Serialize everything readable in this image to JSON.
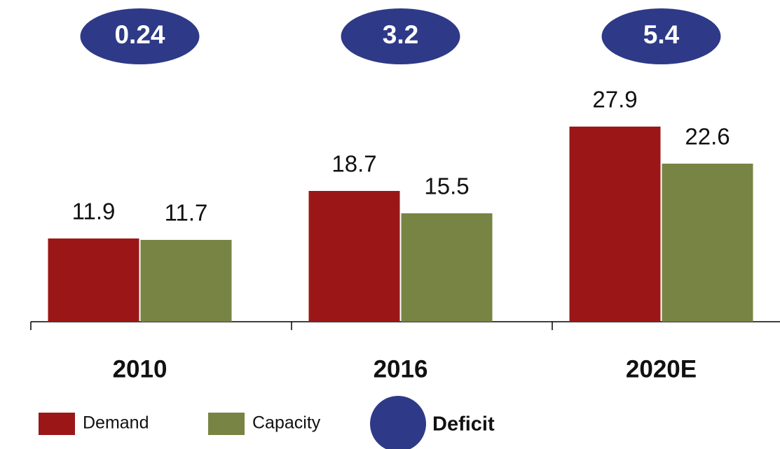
{
  "chart_data": {
    "type": "bar",
    "categories": [
      "2010",
      "2016",
      "2020E"
    ],
    "series": [
      {
        "name": "Demand",
        "color": "#9b1717",
        "values": [
          11.9,
          18.7,
          27.9
        ]
      },
      {
        "name": "Capacity",
        "color": "#788443",
        "values": [
          11.7,
          15.5,
          22.6
        ]
      }
    ],
    "deficit": {
      "name": "Deficit",
      "color": "#2e3a87",
      "values": [
        0.24,
        3.2,
        5.4
      ]
    }
  }
}
